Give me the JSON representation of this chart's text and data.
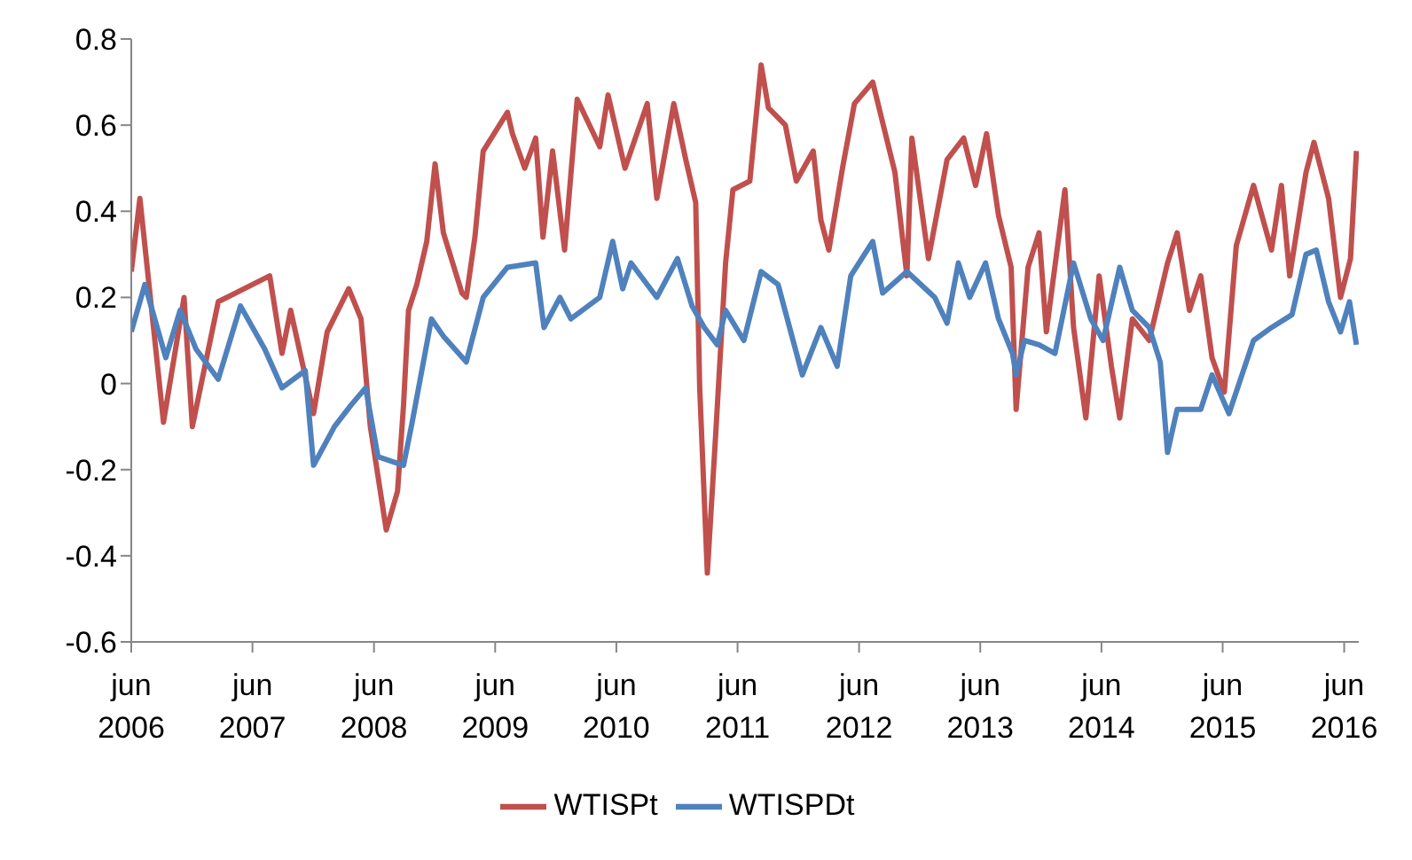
{
  "chart_data": {
    "type": "line",
    "xlim": [
      "2006-06-01",
      "2016-07-15"
    ],
    "xticks": [
      {
        "value": "2006-06",
        "label": "jun 2006"
      },
      {
        "value": "2007-06",
        "label": "jun 2007"
      },
      {
        "value": "2008-06",
        "label": "jun 2008"
      },
      {
        "value": "2009-06",
        "label": "jun 2009"
      },
      {
        "value": "2010-06",
        "label": "jun 2010"
      },
      {
        "value": "2011-06",
        "label": "jun 2011"
      },
      {
        "value": "2012-06",
        "label": "jun 2012"
      },
      {
        "value": "2013-06",
        "label": "jun 2013"
      },
      {
        "value": "2014-06",
        "label": "jun 2014"
      },
      {
        "value": "2015-06",
        "label": "jun 2015"
      },
      {
        "value": "2016-06",
        "label": "jun 2016"
      }
    ],
    "ylim": [
      -0.6,
      0.8
    ],
    "yticks": [
      -0.6,
      -0.4,
      -0.2,
      0,
      0.2,
      0.4,
      0.6,
      0.8
    ],
    "grid": false,
    "legend": "bottom",
    "marker": "none",
    "line_style": "solid",
    "series": [
      {
        "name": "WTISPt",
        "color": "#c0504d",
        "x": [
          "2006-06-01",
          "2006-06-27",
          "2006-09-06",
          "2006-11-07",
          "2006-12-02",
          "2007-02-18",
          "2007-07-23",
          "2007-08-29",
          "2007-09-24",
          "2007-12-02",
          "2008-01-12",
          "2008-03-17",
          "2008-04-23",
          "2008-05-21",
          "2008-07-08",
          "2008-08-11",
          "2008-08-29",
          "2008-09-13",
          "2008-10-08",
          "2008-11-07",
          "2008-12-02",
          "2008-12-27",
          "2009-02-21",
          "2009-03-06",
          "2009-04-01",
          "2009-04-26",
          "2009-07-08",
          "2009-07-23",
          "2009-08-29",
          "2009-10-01",
          "2009-10-23",
          "2009-11-21",
          "2009-12-27",
          "2010-02-03",
          "2010-04-12",
          "2010-05-07",
          "2010-06-27",
          "2010-09-02",
          "2010-10-01",
          "2010-11-21",
          "2010-12-27",
          "2011-01-26",
          "2011-02-07",
          "2011-03-02",
          "2011-03-27",
          "2011-04-26",
          "2011-05-18",
          "2011-07-08",
          "2011-08-11",
          "2011-09-02",
          "2011-10-23",
          "2011-11-25",
          "2012-01-15",
          "2012-02-07",
          "2012-03-02",
          "2012-04-12",
          "2012-05-18",
          "2012-07-12",
          "2012-09-17",
          "2012-10-23",
          "2012-11-07",
          "2012-12-27",
          "2013-02-21",
          "2013-04-12",
          "2013-05-18",
          "2013-06-20",
          "2013-07-26",
          "2013-09-02",
          "2013-09-17",
          "2013-10-23",
          "2013-11-25",
          "2013-12-17",
          "2014-02-11",
          "2014-03-09",
          "2014-04-15",
          "2014-05-25",
          "2014-07-01",
          "2014-07-26",
          "2014-09-02",
          "2014-10-23",
          "2014-12-17",
          "2015-01-15",
          "2015-02-21",
          "2015-03-27",
          "2015-04-30",
          "2015-06-06",
          "2015-07-12",
          "2015-09-02",
          "2015-10-26",
          "2015-11-25",
          "2015-12-20",
          "2016-02-07",
          "2016-03-02",
          "2016-04-15",
          "2016-05-21",
          "2016-06-20",
          "2016-07-08"
        ],
        "values": [
          0.26,
          0.43,
          -0.09,
          0.2,
          -0.1,
          0.19,
          0.25,
          0.07,
          0.17,
          -0.07,
          0.12,
          0.22,
          0.15,
          -0.1,
          -0.34,
          -0.25,
          -0.05,
          0.17,
          0.23,
          0.33,
          0.51,
          0.35,
          0.21,
          0.2,
          0.34,
          0.54,
          0.63,
          0.58,
          0.5,
          0.57,
          0.34,
          0.54,
          0.31,
          0.66,
          0.55,
          0.67,
          0.5,
          0.65,
          0.43,
          0.65,
          0.52,
          0.42,
          -0.01,
          -0.44,
          -0.12,
          0.28,
          0.45,
          0.47,
          0.74,
          0.64,
          0.6,
          0.47,
          0.54,
          0.38,
          0.31,
          0.5,
          0.65,
          0.7,
          0.49,
          0.25,
          0.57,
          0.29,
          0.52,
          0.57,
          0.46,
          0.58,
          0.39,
          0.27,
          -0.06,
          0.27,
          0.35,
          0.12,
          0.45,
          0.13,
          -0.08,
          0.25,
          0.04,
          -0.08,
          0.15,
          0.1,
          0.28,
          0.35,
          0.17,
          0.25,
          0.06,
          -0.02,
          0.32,
          0.46,
          0.31,
          0.46,
          0.25,
          0.49,
          0.56,
          0.43,
          0.2,
          0.29,
          0.54
        ]
      },
      {
        "name": "WTISPDt",
        "color": "#4f81bd",
        "x": [
          "2006-06-01",
          "2006-07-12",
          "2006-09-13",
          "2006-10-26",
          "2006-12-13",
          "2007-02-18",
          "2007-04-26",
          "2007-07-08",
          "2007-08-29",
          "2007-11-07",
          "2007-12-02",
          "2008-02-03",
          "2008-03-24",
          "2008-05-07",
          "2008-06-13",
          "2008-08-29",
          "2008-09-24",
          "2008-11-21",
          "2008-12-27",
          "2009-03-06",
          "2009-04-26",
          "2009-07-08",
          "2009-10-01",
          "2009-10-26",
          "2009-12-13",
          "2010-01-15",
          "2010-04-12",
          "2010-05-21",
          "2010-06-20",
          "2010-07-15",
          "2010-10-01",
          "2010-12-02",
          "2011-01-15",
          "2011-02-21",
          "2011-04-01",
          "2011-04-26",
          "2011-06-20",
          "2011-08-11",
          "2011-10-01",
          "2011-12-13",
          "2012-02-07",
          "2012-03-27",
          "2012-05-07",
          "2012-07-12",
          "2012-08-11",
          "2012-10-23",
          "2013-01-15",
          "2013-02-21",
          "2013-03-27",
          "2013-04-30",
          "2013-06-17",
          "2013-07-26",
          "2013-09-06",
          "2013-09-17",
          "2013-10-12",
          "2013-11-25",
          "2014-01-12",
          "2014-03-09",
          "2014-04-30",
          "2014-06-06",
          "2014-07-26",
          "2014-09-02",
          "2014-10-23",
          "2014-11-25",
          "2014-12-17",
          "2015-01-15",
          "2015-03-27",
          "2015-04-30",
          "2015-06-20",
          "2015-09-02",
          "2015-10-26",
          "2015-12-27",
          "2016-02-07",
          "2016-03-09",
          "2016-04-15",
          "2016-05-21",
          "2016-06-17",
          "2016-07-08"
        ],
        "values": [
          0.12,
          0.23,
          0.06,
          0.17,
          0.08,
          0.01,
          0.18,
          0.08,
          -0.01,
          0.03,
          -0.19,
          -0.1,
          -0.05,
          -0.01,
          -0.17,
          -0.19,
          -0.09,
          0.15,
          0.11,
          0.05,
          0.2,
          0.27,
          0.28,
          0.13,
          0.2,
          0.15,
          0.2,
          0.33,
          0.22,
          0.28,
          0.2,
          0.29,
          0.18,
          0.13,
          0.09,
          0.17,
          0.1,
          0.26,
          0.23,
          0.02,
          0.13,
          0.04,
          0.25,
          0.33,
          0.21,
          0.26,
          0.2,
          0.14,
          0.28,
          0.2,
          0.28,
          0.15,
          0.07,
          0.02,
          0.1,
          0.09,
          0.07,
          0.28,
          0.15,
          0.1,
          0.27,
          0.17,
          0.13,
          0.05,
          -0.16,
          -0.06,
          -0.06,
          0.02,
          -0.07,
          0.1,
          0.13,
          0.16,
          0.3,
          0.31,
          0.19,
          0.12,
          0.19,
          0.09
        ]
      }
    ]
  }
}
